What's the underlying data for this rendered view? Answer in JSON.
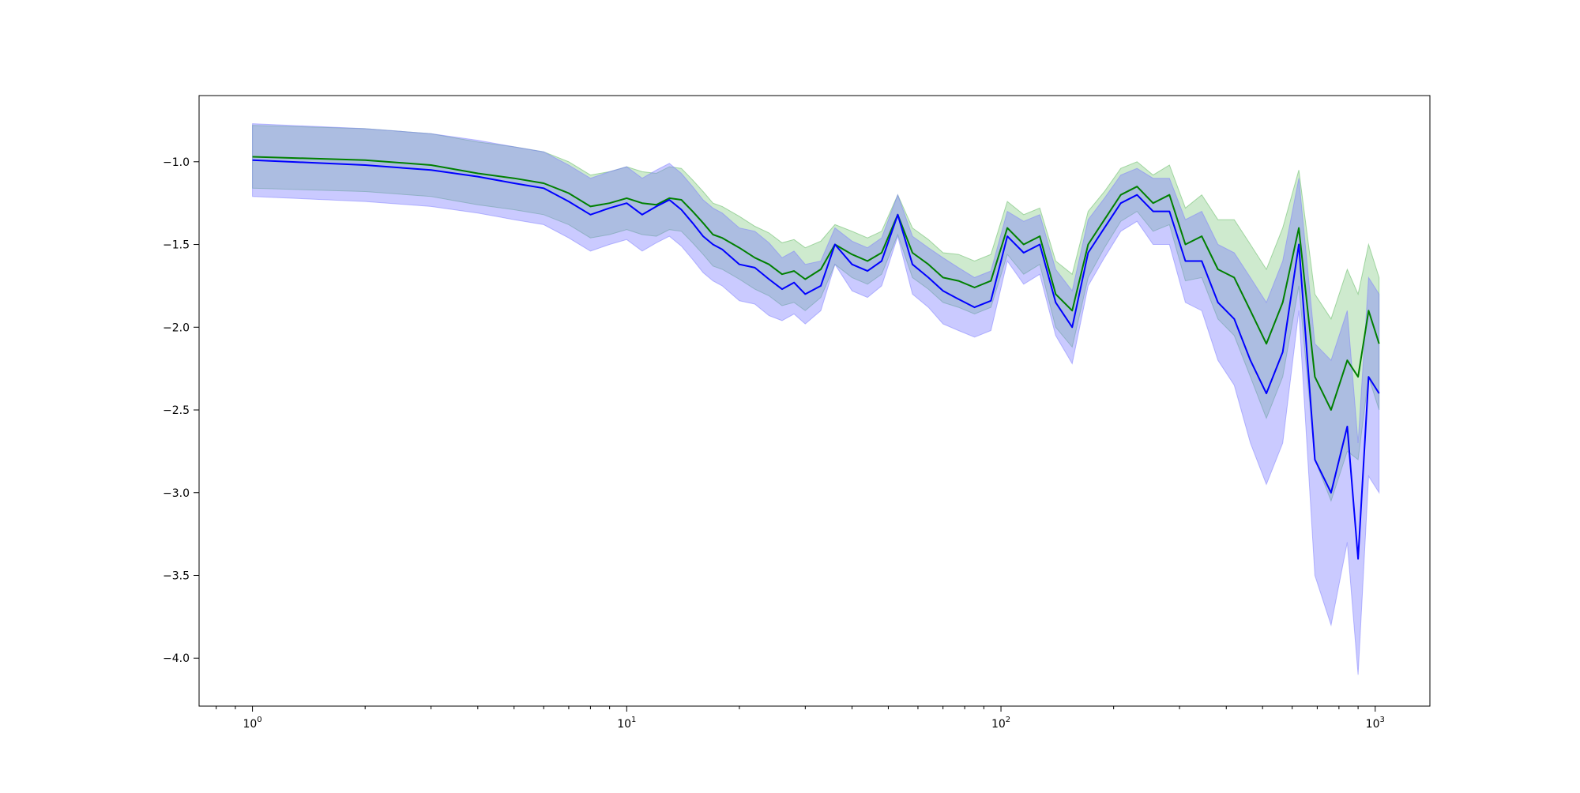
{
  "chart_data": {
    "type": "line",
    "title": "",
    "xlabel": "",
    "ylabel": "",
    "xscale": "log",
    "xlim": [
      0.72,
      1400
    ],
    "ylim": [
      -4.29,
      -0.6
    ],
    "grid": false,
    "legend": "none",
    "x_ticks": [
      {
        "value": 1,
        "base": "10",
        "exp": "0"
      },
      {
        "value": 10,
        "base": "10",
        "exp": "1"
      },
      {
        "value": 100,
        "base": "10",
        "exp": "2"
      },
      {
        "value": 1000,
        "base": "10",
        "exp": "3"
      }
    ],
    "y_ticks": [
      {
        "value": -1.0,
        "label": "−1.0"
      },
      {
        "value": -1.5,
        "label": "−1.5"
      },
      {
        "value": -2.0,
        "label": "−2.0"
      },
      {
        "value": -2.5,
        "label": "−2.5"
      },
      {
        "value": -3.0,
        "label": "−3.0"
      },
      {
        "value": -3.5,
        "label": "−3.5"
      },
      {
        "value": -4.0,
        "label": "−4.0"
      }
    ],
    "series": [
      {
        "color": "#008000",
        "band_color": "#5cb85c",
        "band_opacity": 0.3,
        "x": [
          1,
          2,
          3,
          4,
          5,
          6,
          7,
          8,
          9,
          10,
          11,
          12,
          13,
          14,
          15,
          16,
          17,
          18,
          20,
          22,
          24,
          26,
          28,
          30,
          33,
          36,
          40,
          44,
          48,
          53,
          58,
          64,
          70,
          77,
          85,
          94,
          104,
          115,
          127,
          140,
          155,
          171,
          189,
          209,
          231,
          255,
          282,
          311,
          344,
          380,
          420,
          464,
          512,
          566,
          625,
          690,
          762,
          842,
          900,
          960,
          1024
        ],
        "y": [
          -0.97,
          -0.99,
          -1.02,
          -1.07,
          -1.1,
          -1.13,
          -1.19,
          -1.27,
          -1.25,
          -1.22,
          -1.25,
          -1.26,
          -1.22,
          -1.23,
          -1.3,
          -1.37,
          -1.44,
          -1.46,
          -1.52,
          -1.58,
          -1.62,
          -1.68,
          -1.66,
          -1.71,
          -1.65,
          -1.5,
          -1.56,
          -1.6,
          -1.55,
          -1.32,
          -1.55,
          -1.62,
          -1.7,
          -1.72,
          -1.76,
          -1.72,
          -1.4,
          -1.5,
          -1.45,
          -1.8,
          -1.9,
          -1.5,
          -1.35,
          -1.2,
          -1.15,
          -1.25,
          -1.2,
          -1.5,
          -1.45,
          -1.65,
          -1.7,
          -1.9,
          -2.1,
          -1.85,
          -1.4,
          -2.3,
          -2.5,
          -2.2,
          -2.3,
          -1.9,
          -2.1
        ],
        "lower": [
          -1.16,
          -1.18,
          -1.21,
          -1.26,
          -1.29,
          -1.32,
          -1.38,
          -1.46,
          -1.44,
          -1.41,
          -1.44,
          -1.45,
          -1.41,
          -1.42,
          -1.49,
          -1.56,
          -1.63,
          -1.65,
          -1.71,
          -1.77,
          -1.81,
          -1.87,
          -1.85,
          -1.9,
          -1.82,
          -1.62,
          -1.7,
          -1.74,
          -1.68,
          -1.44,
          -1.7,
          -1.77,
          -1.85,
          -1.88,
          -1.92,
          -1.88,
          -1.56,
          -1.68,
          -1.62,
          -2.0,
          -2.12,
          -1.7,
          -1.52,
          -1.36,
          -1.3,
          -1.42,
          -1.38,
          -1.72,
          -1.7,
          -1.95,
          -2.05,
          -2.3,
          -2.55,
          -2.3,
          -1.75,
          -2.8,
          -3.05,
          -2.75,
          -2.8,
          -2.3,
          -2.5
        ],
        "upper": [
          -0.78,
          -0.8,
          -0.83,
          -0.88,
          -0.91,
          -0.94,
          -1.0,
          -1.08,
          -1.06,
          -1.03,
          -1.06,
          -1.07,
          -1.03,
          -1.04,
          -1.11,
          -1.18,
          -1.25,
          -1.27,
          -1.33,
          -1.39,
          -1.43,
          -1.49,
          -1.47,
          -1.52,
          -1.48,
          -1.38,
          -1.42,
          -1.46,
          -1.42,
          -1.2,
          -1.4,
          -1.47,
          -1.55,
          -1.56,
          -1.6,
          -1.56,
          -1.24,
          -1.32,
          -1.28,
          -1.6,
          -1.68,
          -1.3,
          -1.18,
          -1.04,
          -1.0,
          -1.08,
          -1.02,
          -1.28,
          -1.2,
          -1.35,
          -1.35,
          -1.5,
          -1.65,
          -1.4,
          -1.05,
          -1.8,
          -1.95,
          -1.65,
          -1.8,
          -1.5,
          -1.7
        ]
      },
      {
        "color": "#0000ff",
        "band_color": "#7b7bff",
        "band_opacity": 0.4,
        "x": [
          1,
          2,
          3,
          4,
          5,
          6,
          7,
          8,
          9,
          10,
          11,
          12,
          13,
          14,
          15,
          16,
          17,
          18,
          20,
          22,
          24,
          26,
          28,
          30,
          33,
          36,
          40,
          44,
          48,
          53,
          58,
          64,
          70,
          77,
          85,
          94,
          104,
          115,
          127,
          140,
          155,
          171,
          189,
          209,
          231,
          255,
          282,
          311,
          344,
          380,
          420,
          464,
          512,
          566,
          625,
          690,
          762,
          842,
          900,
          960,
          1024
        ],
        "y": [
          -0.99,
          -1.02,
          -1.05,
          -1.09,
          -1.13,
          -1.16,
          -1.24,
          -1.32,
          -1.28,
          -1.25,
          -1.32,
          -1.27,
          -1.23,
          -1.29,
          -1.37,
          -1.45,
          -1.5,
          -1.53,
          -1.62,
          -1.64,
          -1.71,
          -1.77,
          -1.73,
          -1.8,
          -1.75,
          -1.5,
          -1.62,
          -1.66,
          -1.6,
          -1.32,
          -1.62,
          -1.7,
          -1.78,
          -1.83,
          -1.88,
          -1.84,
          -1.45,
          -1.55,
          -1.5,
          -1.85,
          -2.0,
          -1.55,
          -1.4,
          -1.25,
          -1.2,
          -1.3,
          -1.3,
          -1.6,
          -1.6,
          -1.85,
          -1.95,
          -2.2,
          -2.4,
          -2.15,
          -1.5,
          -2.8,
          -3.0,
          -2.6,
          -3.4,
          -2.3,
          -2.4
        ],
        "lower": [
          -1.21,
          -1.24,
          -1.27,
          -1.31,
          -1.35,
          -1.38,
          -1.46,
          -1.54,
          -1.5,
          -1.47,
          -1.54,
          -1.49,
          -1.45,
          -1.51,
          -1.59,
          -1.67,
          -1.72,
          -1.75,
          -1.84,
          -1.86,
          -1.93,
          -1.96,
          -1.92,
          -1.98,
          -1.9,
          -1.62,
          -1.78,
          -1.82,
          -1.75,
          -1.45,
          -1.8,
          -1.88,
          -1.98,
          -2.02,
          -2.06,
          -2.02,
          -1.6,
          -1.74,
          -1.68,
          -2.05,
          -2.22,
          -1.75,
          -1.58,
          -1.42,
          -1.36,
          -1.5,
          -1.5,
          -1.85,
          -1.9,
          -2.2,
          -2.35,
          -2.7,
          -2.95,
          -2.7,
          -1.9,
          -3.5,
          -3.8,
          -3.3,
          -4.1,
          -2.9,
          -3.0
        ],
        "upper": [
          -0.77,
          -0.8,
          -0.83,
          -0.87,
          -0.91,
          -0.94,
          -1.02,
          -1.1,
          -1.06,
          -1.03,
          -1.1,
          -1.05,
          -1.01,
          -1.07,
          -1.15,
          -1.23,
          -1.28,
          -1.31,
          -1.4,
          -1.42,
          -1.49,
          -1.58,
          -1.54,
          -1.62,
          -1.6,
          -1.4,
          -1.48,
          -1.52,
          -1.46,
          -1.2,
          -1.45,
          -1.52,
          -1.58,
          -1.64,
          -1.7,
          -1.66,
          -1.3,
          -1.36,
          -1.32,
          -1.65,
          -1.78,
          -1.35,
          -1.22,
          -1.08,
          -1.04,
          -1.1,
          -1.1,
          -1.35,
          -1.3,
          -1.5,
          -1.55,
          -1.7,
          -1.85,
          -1.6,
          -1.1,
          -2.1,
          -2.2,
          -1.9,
          -2.7,
          -1.7,
          -1.8
        ]
      }
    ]
  }
}
